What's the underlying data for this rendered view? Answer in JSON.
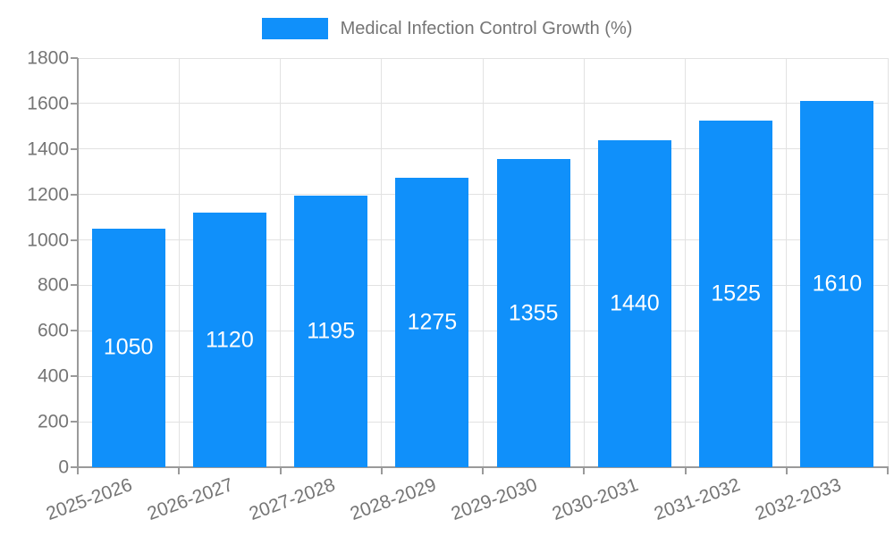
{
  "chart_data": {
    "type": "bar",
    "title": "Medical Infection Control Growth (%)",
    "categories": [
      "2025-2026",
      "2026-2027",
      "2027-2028",
      "2028-2029",
      "2029-2030",
      "2030-2031",
      "2031-2032",
      "2032-2033"
    ],
    "values": [
      1050,
      1120,
      1195,
      1275,
      1355,
      1440,
      1525,
      1610
    ],
    "xlabel": "",
    "ylabel": "",
    "ylim": [
      0,
      1800
    ],
    "ytick_step": 200,
    "ytick_labels": [
      "0",
      "200",
      "400",
      "600",
      "800",
      "1000",
      "1200",
      "1400",
      "1600",
      "1800"
    ],
    "grid": true,
    "legend_position": "top-center",
    "legend_entries": [
      "Medical Infection Control Growth (%)"
    ],
    "x_tick_label_rotation_deg": -20,
    "value_label_placement": "inside-center"
  },
  "colors": {
    "bar": "#1090fa",
    "axis_label": "#757575",
    "legend_label": "#757575",
    "bar_value_label": "#ffffff",
    "grid_line": "#e2e2e2",
    "axis_line": "#9a9a9a",
    "background": "#ffffff"
  }
}
